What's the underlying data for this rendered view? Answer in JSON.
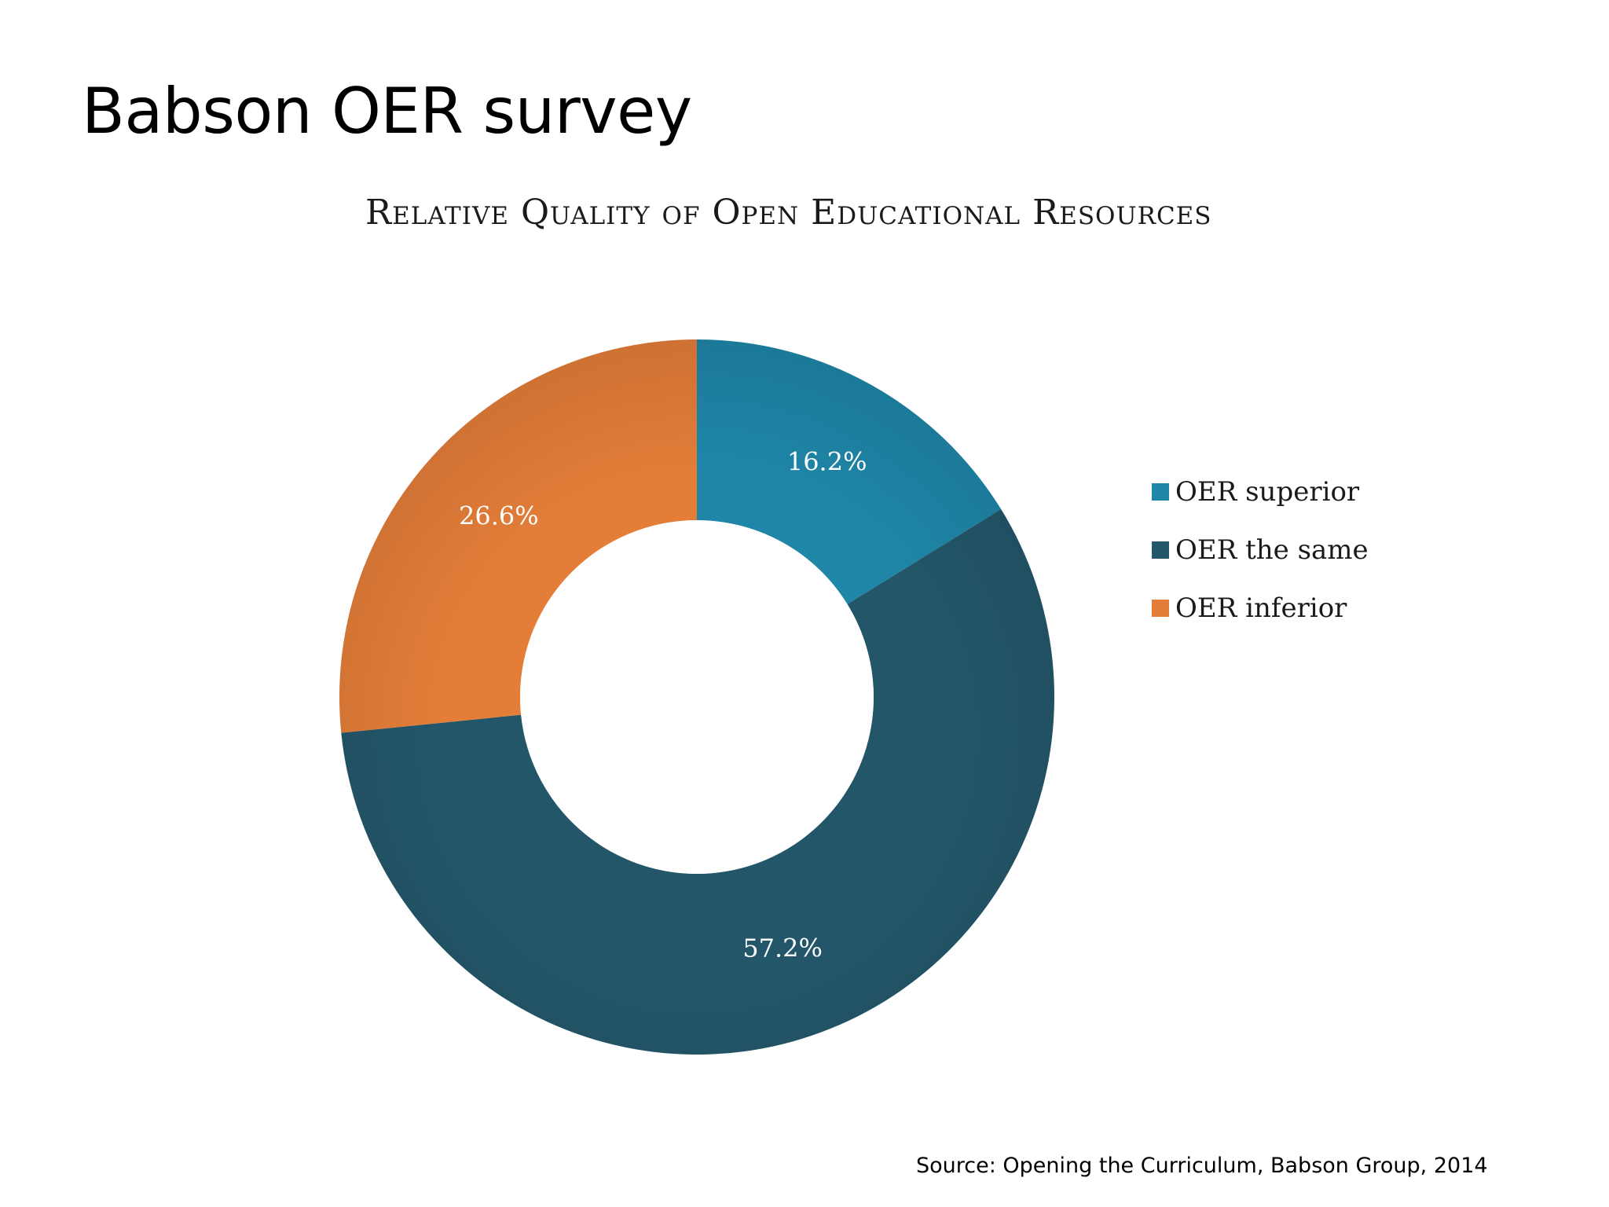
{
  "slide": {
    "title": "Babson OER survey",
    "source": "Source: Opening the Curriculum, Babson Group, 2014"
  },
  "chart_data": {
    "type": "pie",
    "donut": true,
    "title": "Relative Quality of Open Educational Resources",
    "legend_position": "right",
    "slices": [
      {
        "name": "OER superior",
        "value": 16.2,
        "label": "16.2%",
        "color": "#1f86a8"
      },
      {
        "name": "OER the same",
        "value": 57.2,
        "label": "57.2%",
        "color": "#235669"
      },
      {
        "name": "OER inferior",
        "value": 26.6,
        "label": "26.6%",
        "color": "#e37d38"
      }
    ]
  }
}
